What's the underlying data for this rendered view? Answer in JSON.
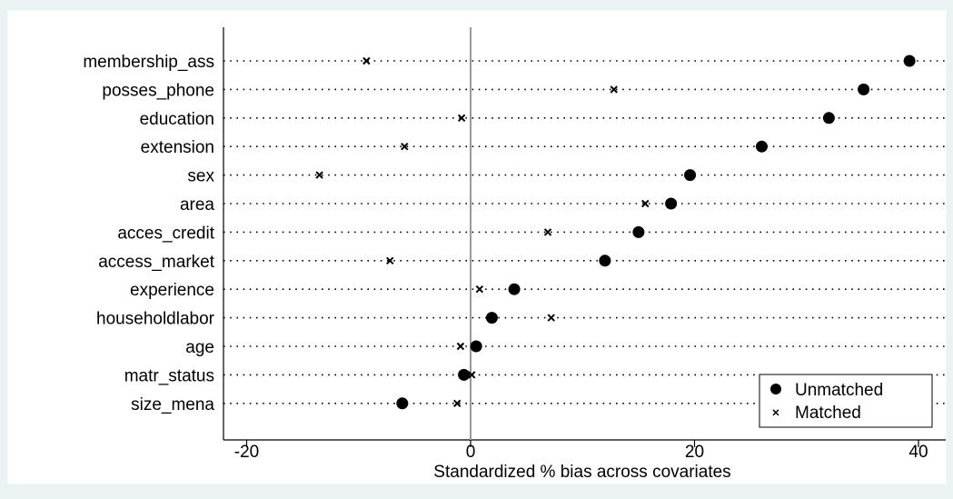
{
  "chart_data": {
    "type": "scatter",
    "xlabel": "Standardized % bias across covariates",
    "ylabel": "",
    "xlim": [
      -22,
      42
    ],
    "xticks": [
      -20,
      0,
      20,
      40
    ],
    "grid": "dotted horizontal lines per covariate",
    "reference_line_x": 0,
    "categories": [
      "membership_ass",
      "posses_phone",
      "education",
      "extension",
      "sex",
      "area",
      "acces_credit",
      "access_market",
      "experience",
      "householdlabor",
      "age",
      "matr_status",
      "size_mena"
    ],
    "series": [
      {
        "name": "Unmatched",
        "marker": "filled-circle",
        "values": [
          39.2,
          35.1,
          32.0,
          26.0,
          19.6,
          17.9,
          15.0,
          12.0,
          3.9,
          1.9,
          0.5,
          -0.6,
          -6.1
        ]
      },
      {
        "name": "Matched",
        "marker": "x-cross",
        "values": [
          -9.3,
          12.8,
          -0.8,
          -5.9,
          -13.5,
          15.6,
          6.9,
          -7.2,
          0.8,
          7.2,
          -0.9,
          0.1,
          -1.2
        ]
      }
    ],
    "legend_position": "bottom-right",
    "colors": {
      "background": "#eaf2f3",
      "plot_background": "#ffffff",
      "marker": "#000000",
      "zero_line": "#999999"
    }
  }
}
